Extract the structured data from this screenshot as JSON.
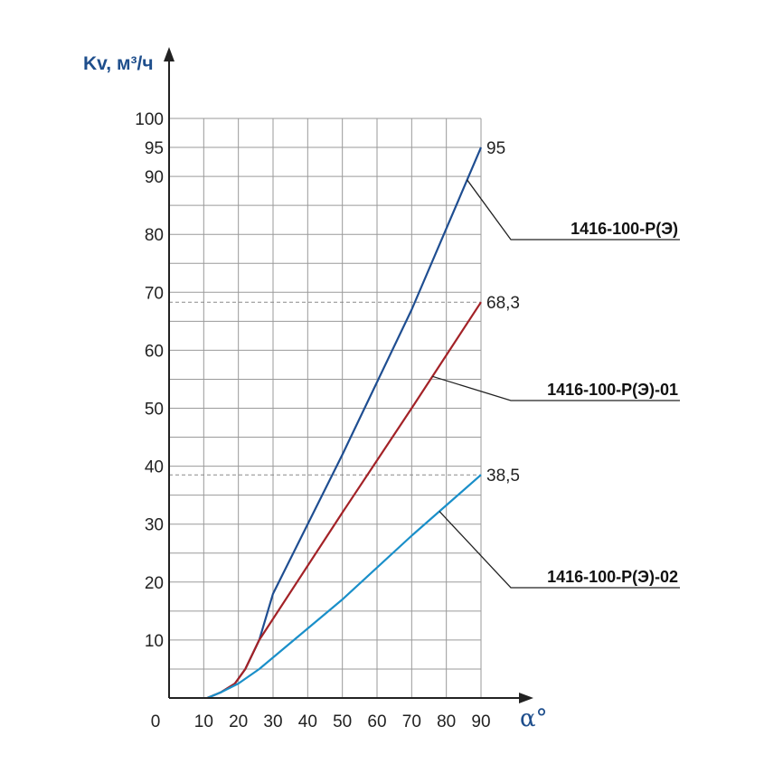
{
  "chart_data": {
    "type": "line",
    "ylabel": "Kv, м³/ч",
    "xlabel": "α°",
    "xlim": [
      0,
      90
    ],
    "ylim": [
      0,
      100
    ],
    "x_ticks": [
      0,
      10,
      20,
      30,
      40,
      50,
      60,
      70,
      80,
      90
    ],
    "y_ticks": [
      10,
      20,
      30,
      40,
      50,
      60,
      70,
      80,
      90,
      95,
      100
    ],
    "grid": true,
    "reference_lines": [
      68.3,
      38.5
    ],
    "colors": {
      "grid": "#9a9a9a",
      "axis": "#222222",
      "title": "#1e4e8c"
    },
    "series": [
      {
        "name": "1416-100-Р(Э)",
        "color": "#1f4e91",
        "end_label": "95",
        "points": [
          [
            11,
            0
          ],
          [
            15,
            1
          ],
          [
            19,
            2.5
          ],
          [
            22,
            5
          ],
          [
            26,
            10
          ],
          [
            30,
            18
          ],
          [
            50,
            42
          ],
          [
            70,
            67
          ],
          [
            90,
            95
          ]
        ]
      },
      {
        "name": "1416-100-Р(Э)-01",
        "color": "#a32227",
        "end_label": "68,3",
        "points": [
          [
            11,
            0
          ],
          [
            15,
            1
          ],
          [
            19,
            2.5
          ],
          [
            22,
            5
          ],
          [
            26,
            10
          ],
          [
            50,
            32
          ],
          [
            70,
            50
          ],
          [
            90,
            68.3
          ]
        ]
      },
      {
        "name": "1416-100-Р(Э)-02",
        "color": "#1a8fc9",
        "end_label": "38,5",
        "points": [
          [
            11,
            0
          ],
          [
            15,
            1
          ],
          [
            20,
            2.5
          ],
          [
            26,
            5
          ],
          [
            50,
            17
          ],
          [
            70,
            28
          ],
          [
            90,
            38.5
          ]
        ]
      }
    ]
  }
}
